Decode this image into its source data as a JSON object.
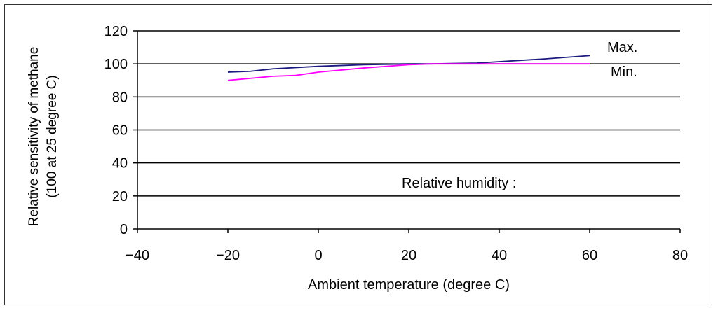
{
  "chart_data": {
    "type": "line",
    "xlabel": "Ambient temperature (degree C)",
    "ylabel": "Relative sensitivity of methane",
    "ylabel2": "(100 at 25 degree C)",
    "xlim": [
      -40,
      80
    ],
    "ylim": [
      0,
      120
    ],
    "xticks": [
      -40,
      -20,
      0,
      20,
      40,
      60,
      80
    ],
    "yticks": [
      0,
      20,
      40,
      60,
      80,
      100,
      120
    ],
    "grid": "horizontal",
    "annotation": "Relative humidity :",
    "series": [
      {
        "name": "Max.",
        "color": "#1a1a80",
        "x": [
          -20,
          -15,
          -10,
          0,
          10,
          20,
          25,
          35,
          50,
          60
        ],
        "y": [
          95,
          95.5,
          97,
          98.5,
          99.5,
          100,
          100,
          100.5,
          103,
          105
        ]
      },
      {
        "name": "Min.",
        "color": "#ff00ff",
        "x": [
          -20,
          -10,
          -5,
          0,
          10,
          20,
          25,
          60
        ],
        "y": [
          90,
          92.5,
          93,
          95,
          97.5,
          99.5,
          100,
          100
        ]
      }
    ]
  }
}
